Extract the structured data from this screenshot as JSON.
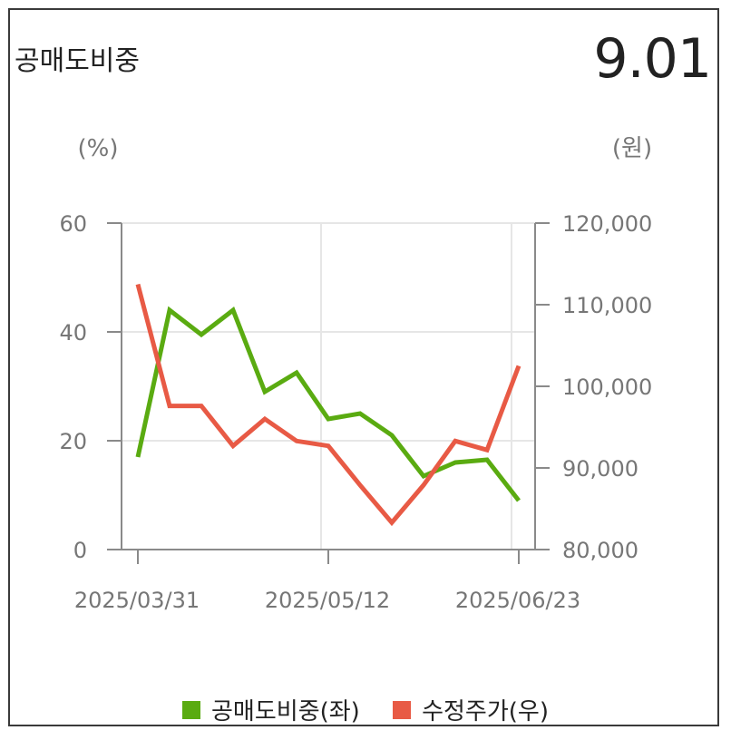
{
  "title": "공매도비중",
  "current_value": "9.01",
  "colors": {
    "short_ratio": "#5aab11",
    "price": "#e85a45"
  },
  "chart_data": {
    "type": "line",
    "x_ticks": [
      "2025/03/31",
      "2025/05/12",
      "2025/06/23"
    ],
    "left_unit": "(%)",
    "right_unit": "(원)",
    "left_ticks": [
      "0",
      "20",
      "40",
      "60"
    ],
    "right_ticks": [
      "80,000",
      "90,000",
      "100,000",
      "110,000",
      "120,000"
    ],
    "ylim_left": [
      0,
      60
    ],
    "ylim_right": [
      80000,
      120000
    ],
    "grid": true,
    "legend_position": "bottom",
    "series": [
      {
        "name": "공매도비중(좌)",
        "axis": "left",
        "values": [
          17,
          44,
          39.5,
          44,
          29,
          32.5,
          24,
          25,
          21,
          13.5,
          16,
          16.5,
          9
        ]
      },
      {
        "name": "수정주가(우)",
        "axis": "right",
        "values": [
          112500,
          97600,
          97600,
          92700,
          96000,
          93300,
          92700,
          87900,
          83300,
          87900,
          93300,
          92200,
          102500
        ]
      }
    ]
  }
}
